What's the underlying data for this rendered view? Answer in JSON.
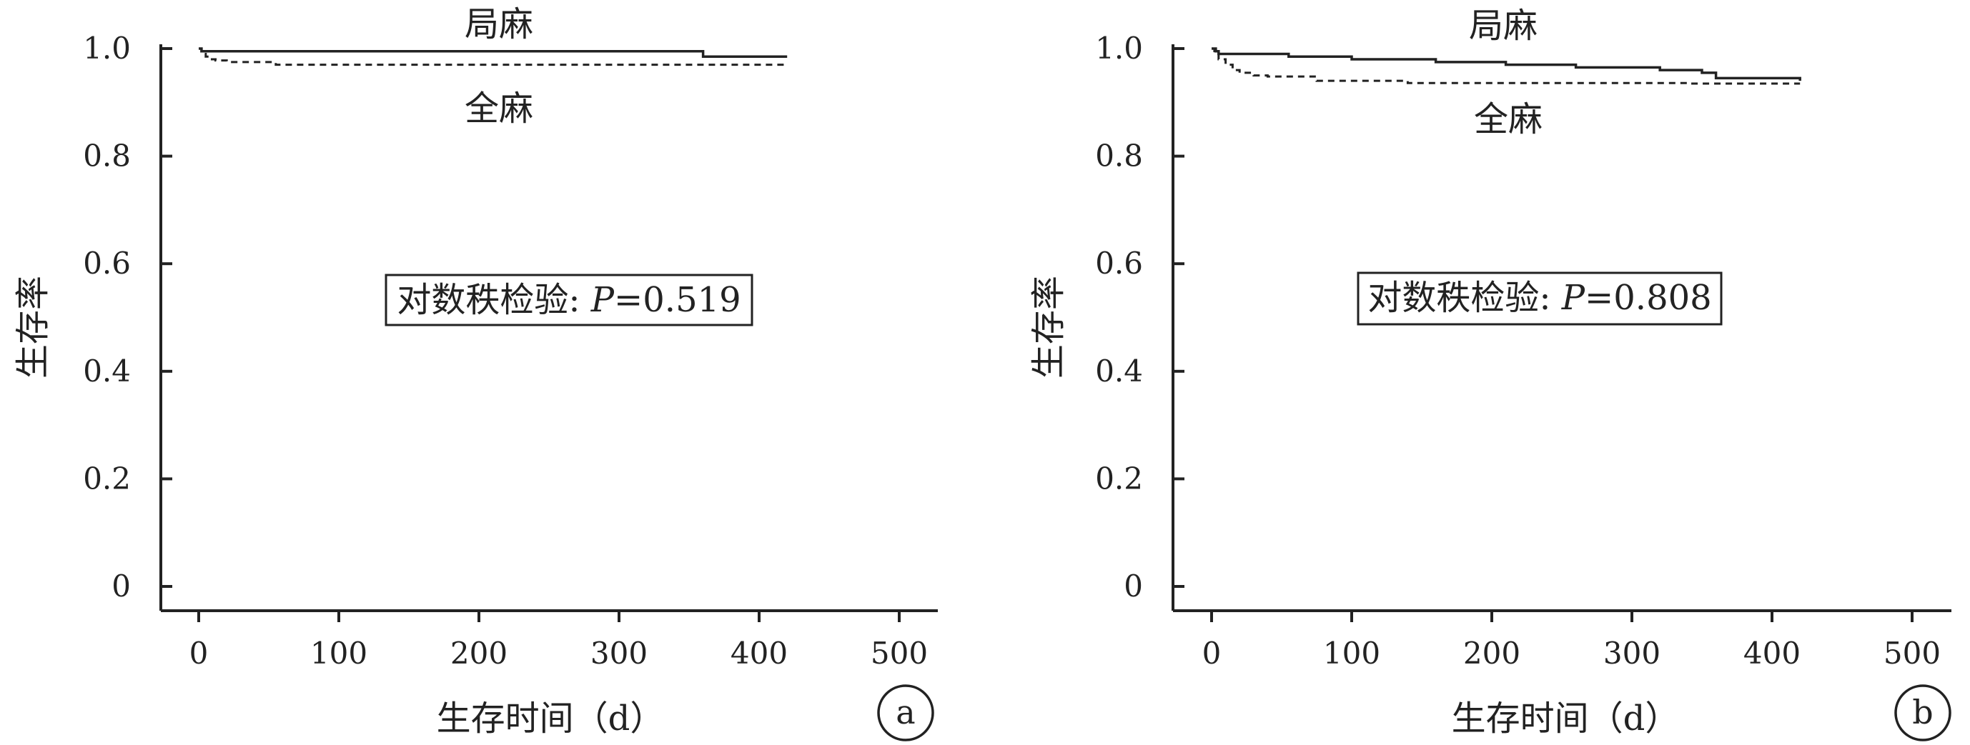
{
  "chart_data": [
    {
      "type": "line",
      "panel_label": "a",
      "xlabel": "生存时间（d）",
      "ylabel": "生存率",
      "xlim": [
        -25,
        520
      ],
      "ylim": [
        -0.05,
        1.0
      ],
      "x_ticks": [
        0,
        100,
        200,
        300,
        400,
        500
      ],
      "y_ticks": [
        0,
        0.2,
        0.4,
        0.6,
        0.8,
        1.0
      ],
      "x_tick_labels": [
        "0",
        "100",
        "200",
        "300",
        "400",
        "500"
      ],
      "y_tick_labels": [
        "0",
        "0.2",
        "0.4",
        "0.6",
        "0.8",
        "1.0"
      ],
      "grid": false,
      "legend": "none",
      "annotation": "对数秩检验: P=0.519",
      "series": [
        {
          "name": "局麻",
          "style": "solid",
          "x": [
            0,
            2,
            2,
            48,
            345,
            360,
            420
          ],
          "y": [
            1.0,
            1.0,
            0.995,
            0.995,
            0.995,
            0.985,
            0.985
          ]
        },
        {
          "name": "全麻",
          "style": "dashed",
          "x": [
            0,
            2,
            5,
            8,
            12,
            20,
            55,
            420
          ],
          "y": [
            1.0,
            0.99,
            0.985,
            0.98,
            0.978,
            0.975,
            0.97,
            0.97
          ]
        }
      ]
    },
    {
      "type": "line",
      "panel_label": "b",
      "xlabel": "生存时间（d）",
      "ylabel": "生存率",
      "xlim": [
        -25,
        520
      ],
      "ylim": [
        -0.05,
        1.0
      ],
      "x_ticks": [
        0,
        100,
        200,
        300,
        400,
        500
      ],
      "y_ticks": [
        0,
        0.2,
        0.4,
        0.6,
        0.8,
        1.0
      ],
      "x_tick_labels": [
        "0",
        "100",
        "200",
        "300",
        "400",
        "500"
      ],
      "y_tick_labels": [
        "0",
        "0.2",
        "0.4",
        "0.6",
        "0.8",
        "1.0"
      ],
      "grid": false,
      "legend": "none",
      "annotation": "对数秩检验: P=0.808",
      "series": [
        {
          "name": "局麻",
          "style": "solid",
          "x": [
            0,
            3,
            5,
            30,
            55,
            100,
            160,
            210,
            260,
            320,
            350,
            360,
            420
          ],
          "y": [
            1.0,
            0.995,
            0.99,
            0.99,
            0.985,
            0.98,
            0.975,
            0.97,
            0.965,
            0.96,
            0.955,
            0.945,
            0.94
          ]
        },
        {
          "name": "全麻",
          "style": "dashed",
          "x": [
            0,
            2,
            5,
            10,
            15,
            20,
            30,
            40,
            75,
            140,
            340,
            420
          ],
          "y": [
            1.0,
            0.99,
            0.98,
            0.97,
            0.96,
            0.955,
            0.95,
            0.948,
            0.94,
            0.936,
            0.935,
            0.935
          ]
        }
      ]
    }
  ]
}
